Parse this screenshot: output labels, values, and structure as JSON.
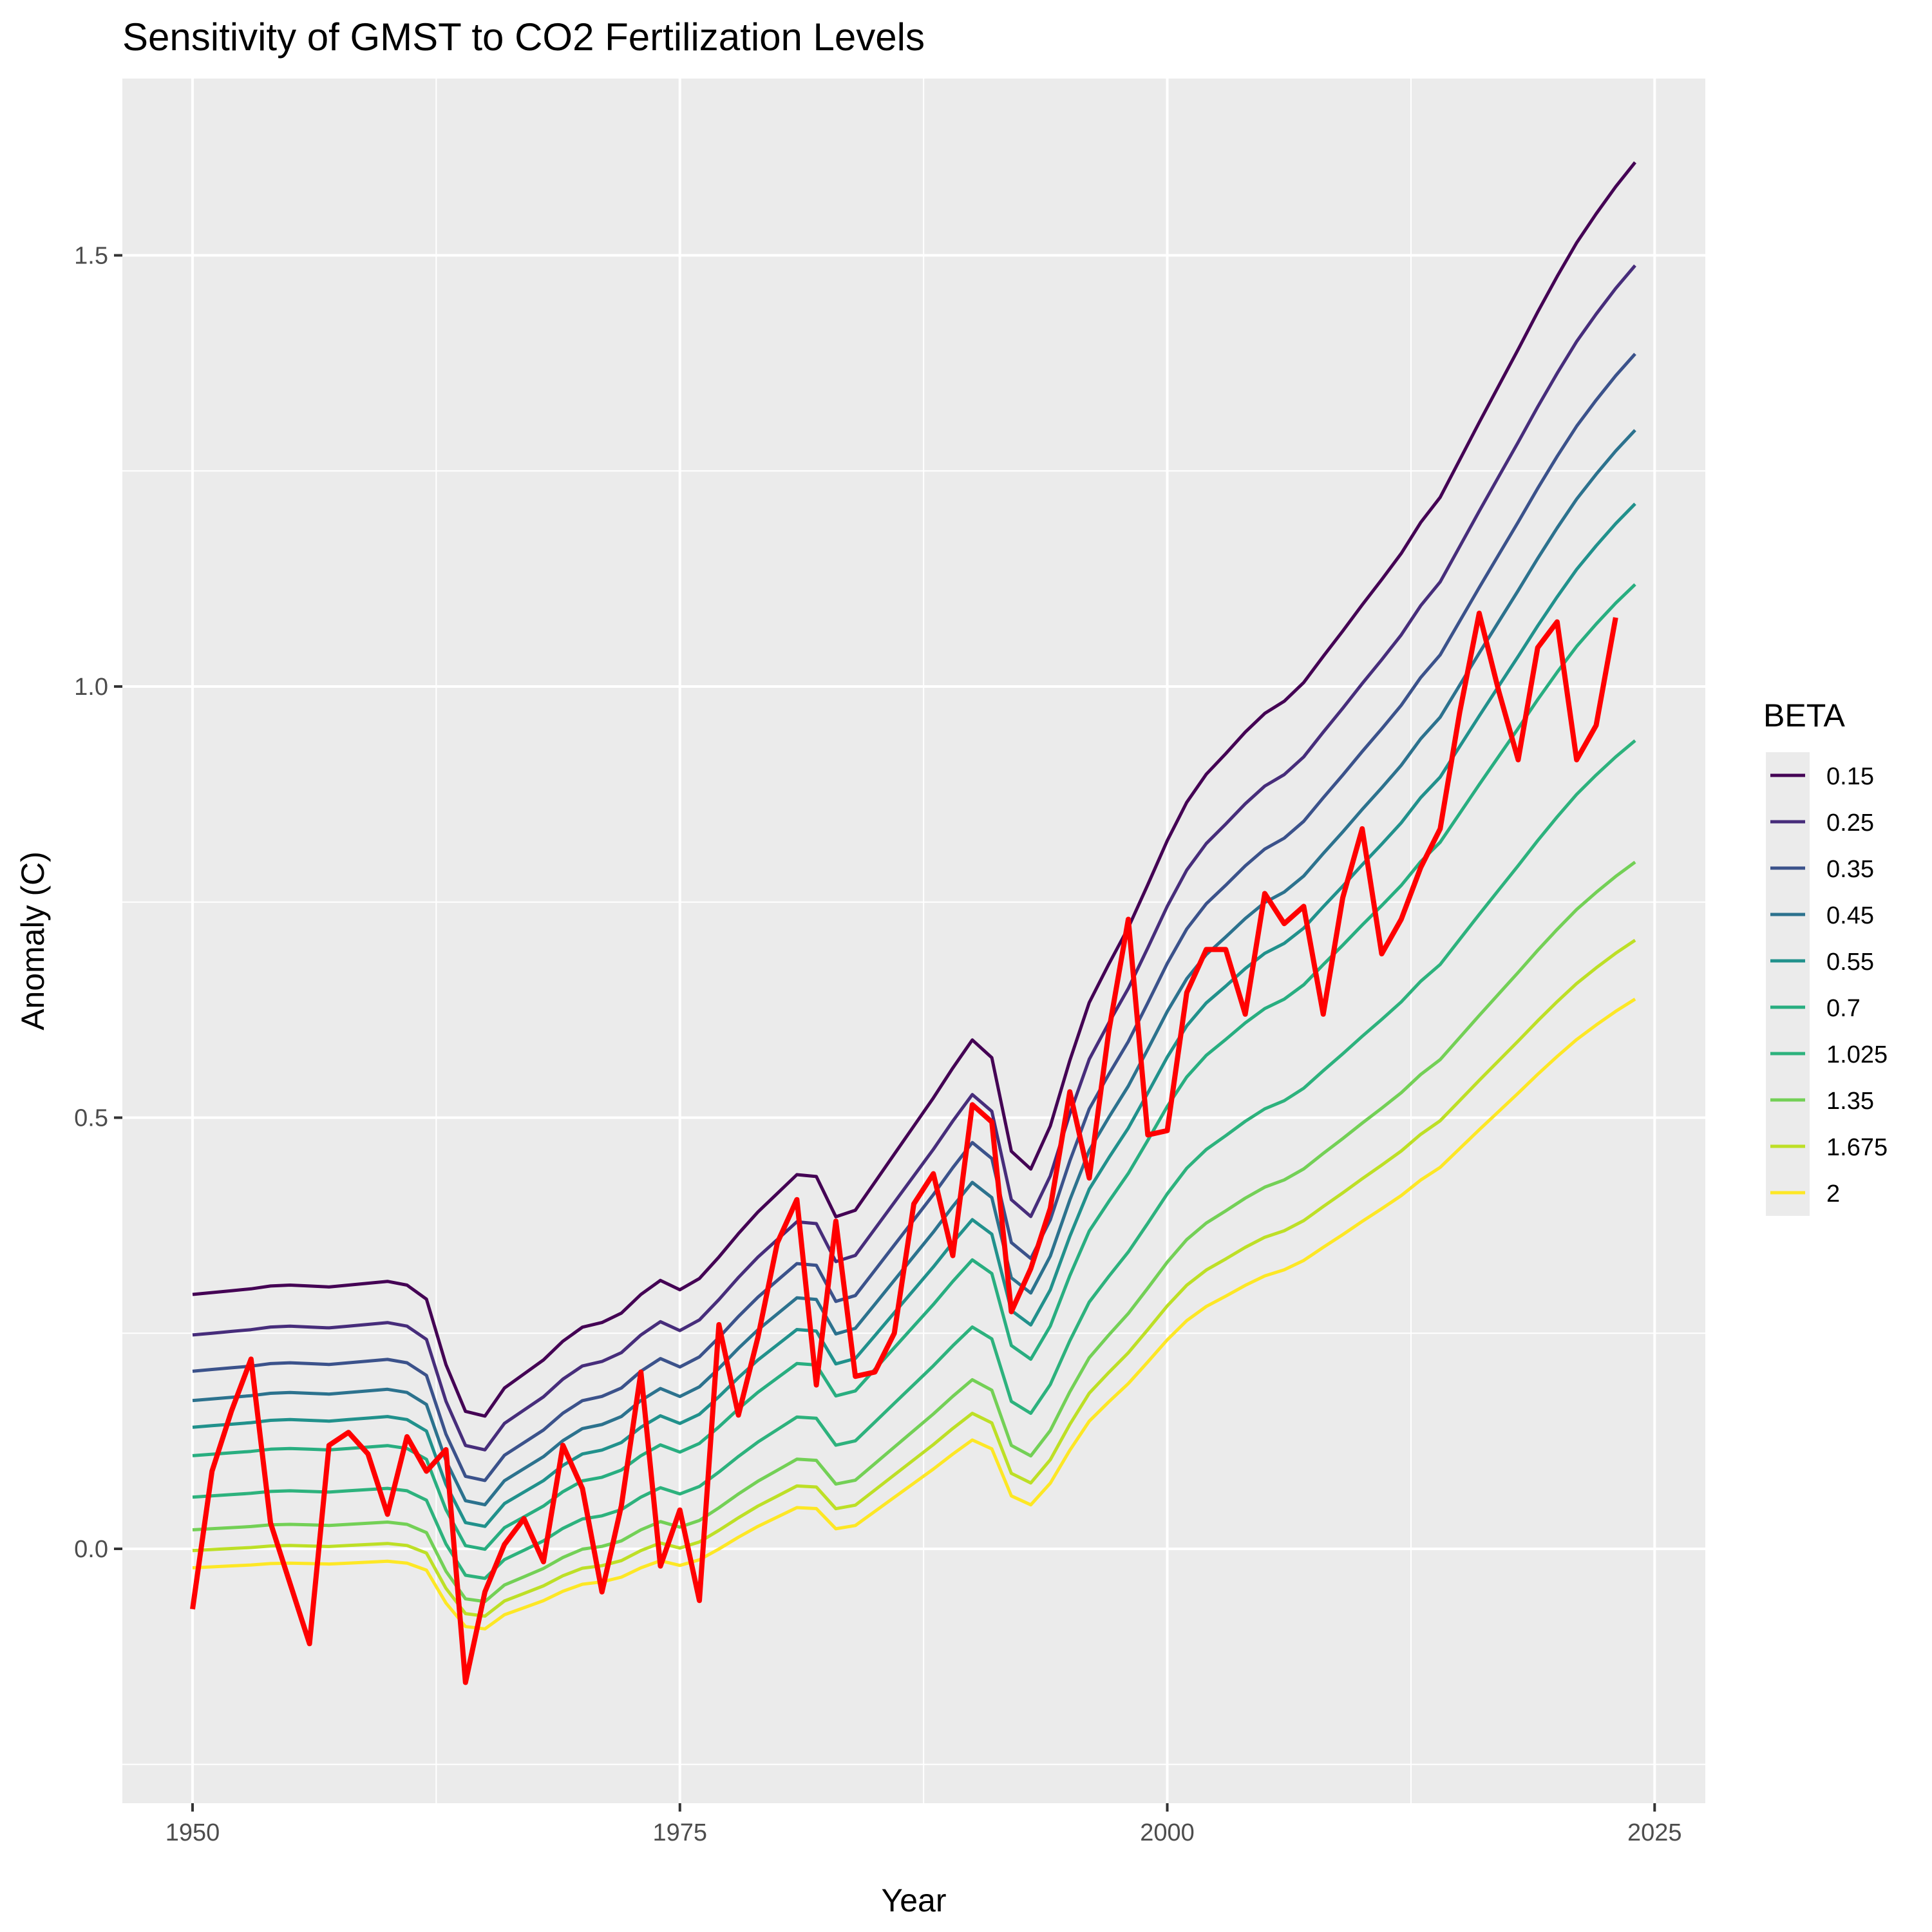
{
  "chart_data": {
    "type": "line",
    "title": "Sensitivity of GMST to CO2 Fertilization Levels",
    "xlabel": "Year",
    "ylabel": "Anomaly (C)",
    "xlim": [
      1946.4,
      2027.6
    ],
    "ylim": [
      -0.295,
      1.705
    ],
    "x_ticks": [
      1950,
      1975,
      2000,
      2025
    ],
    "y_ticks": [
      0.0,
      0.5,
      1.0,
      1.5
    ],
    "y_tick_labels": [
      "0.0",
      "0.5",
      "1.0",
      "1.5"
    ],
    "grid": true,
    "legend": {
      "title": "BETA",
      "position": "right"
    },
    "years": [
      1950,
      1951,
      1952,
      1953,
      1954,
      1955,
      1956,
      1957,
      1958,
      1959,
      1960,
      1961,
      1962,
      1963,
      1964,
      1965,
      1966,
      1967,
      1968,
      1969,
      1970,
      1971,
      1972,
      1973,
      1974,
      1975,
      1976,
      1977,
      1978,
      1979,
      1980,
      1981,
      1982,
      1983,
      1984,
      1985,
      1986,
      1987,
      1988,
      1989,
      1990,
      1991,
      1992,
      1993,
      1994,
      1995,
      1996,
      1997,
      1998,
      1999,
      2000,
      2001,
      2002,
      2003,
      2004,
      2005,
      2006,
      2007,
      2008,
      2009,
      2010,
      2011,
      2012,
      2013,
      2014,
      2015,
      2016,
      2017,
      2018,
      2019,
      2020,
      2021,
      2022,
      2023,
      2024
    ],
    "base_curve": [
      0.0,
      0.002,
      0.004,
      0.006,
      0.009,
      0.01,
      0.009,
      0.008,
      0.01,
      0.012,
      0.014,
      0.01,
      -0.005,
      -0.075,
      -0.125,
      -0.13,
      -0.1,
      -0.085,
      -0.07,
      -0.05,
      -0.035,
      -0.03,
      -0.02,
      0.0,
      0.015,
      0.005,
      0.017,
      0.04,
      0.065,
      0.088,
      0.108,
      0.128,
      0.126,
      0.083,
      0.09,
      0.12,
      0.15,
      0.18,
      0.21,
      0.242,
      0.272,
      0.253,
      0.153,
      0.134,
      0.18,
      0.25,
      0.312,
      0.353,
      0.392,
      0.438,
      0.485,
      0.526,
      0.556,
      0.578,
      0.601,
      0.621,
      0.634,
      0.654,
      0.682,
      0.709,
      0.737,
      0.764,
      0.792,
      0.825,
      0.852,
      0.892,
      0.932,
      0.971,
      1.01,
      1.05,
      1.088,
      1.124,
      1.155,
      1.184,
      1.21
    ],
    "series": [
      {
        "name": "0.15",
        "color": "#440154",
        "offset": 0.295,
        "scale": 1.085
      },
      {
        "name": "0.25",
        "color": "#472d7b",
        "offset": 0.248,
        "scale": 1.025
      },
      {
        "name": "0.35",
        "color": "#3b528b",
        "offset": 0.206,
        "scale": 0.975
      },
      {
        "name": "0.45",
        "color": "#2c728e",
        "offset": 0.172,
        "scale": 0.93
      },
      {
        "name": "0.55",
        "color": "#21918c",
        "offset": 0.141,
        "scale": 0.885
      },
      {
        "name": "0.7",
        "color": "#28ae80",
        "offset": 0.108,
        "scale": 0.835
      },
      {
        "name": "1.025",
        "color": "#2db27d",
        "offset": 0.06,
        "scale": 0.725
      },
      {
        "name": "1.35",
        "color": "#73d056",
        "offset": 0.022,
        "scale": 0.64
      },
      {
        "name": "1.675",
        "color": "#bddf26",
        "offset": -0.002,
        "scale": 0.585
      },
      {
        "name": "2",
        "color": "#fde725",
        "offset": -0.022,
        "scale": 0.545
      }
    ],
    "observed": {
      "color": "#ff0000",
      "years": [
        1950,
        1951,
        1952,
        1953,
        1954,
        1955,
        1956,
        1957,
        1958,
        1959,
        1960,
        1961,
        1962,
        1963,
        1964,
        1965,
        1966,
        1967,
        1968,
        1969,
        1970,
        1971,
        1972,
        1973,
        1974,
        1975,
        1976,
        1977,
        1978,
        1979,
        1980,
        1981,
        1982,
        1983,
        1984,
        1985,
        1986,
        1987,
        1988,
        1989,
        1990,
        1991,
        1992,
        1993,
        1994,
        1995,
        1996,
        1997,
        1998,
        1999,
        2000,
        2001,
        2002,
        2003,
        2004,
        2005,
        2006,
        2007,
        2008,
        2009,
        2010,
        2011,
        2012,
        2013,
        2014,
        2015,
        2016,
        2017,
        2018,
        2019,
        2020,
        2021,
        2022,
        2023
      ],
      "values": [
        -0.07,
        0.09,
        0.16,
        0.22,
        0.03,
        -0.04,
        -0.11,
        0.12,
        0.135,
        0.11,
        0.04,
        0.13,
        0.09,
        0.115,
        -0.155,
        -0.05,
        0.005,
        0.035,
        -0.015,
        0.12,
        0.07,
        -0.05,
        0.05,
        0.205,
        -0.02,
        0.045,
        -0.06,
        0.26,
        0.155,
        0.245,
        0.355,
        0.405,
        0.19,
        0.38,
        0.2,
        0.205,
        0.25,
        0.4,
        0.435,
        0.34,
        0.515,
        0.495,
        0.275,
        0.325,
        0.395,
        0.53,
        0.43,
        0.6,
        0.73,
        0.48,
        0.485,
        0.645,
        0.695,
        0.695,
        0.62,
        0.76,
        0.725,
        0.745,
        0.62,
        0.755,
        0.835,
        0.69,
        0.73,
        0.79,
        0.835,
        0.97,
        1.085,
        0.995,
        0.915,
        1.045,
        1.075,
        0.915,
        0.955,
        1.08
      ]
    }
  }
}
